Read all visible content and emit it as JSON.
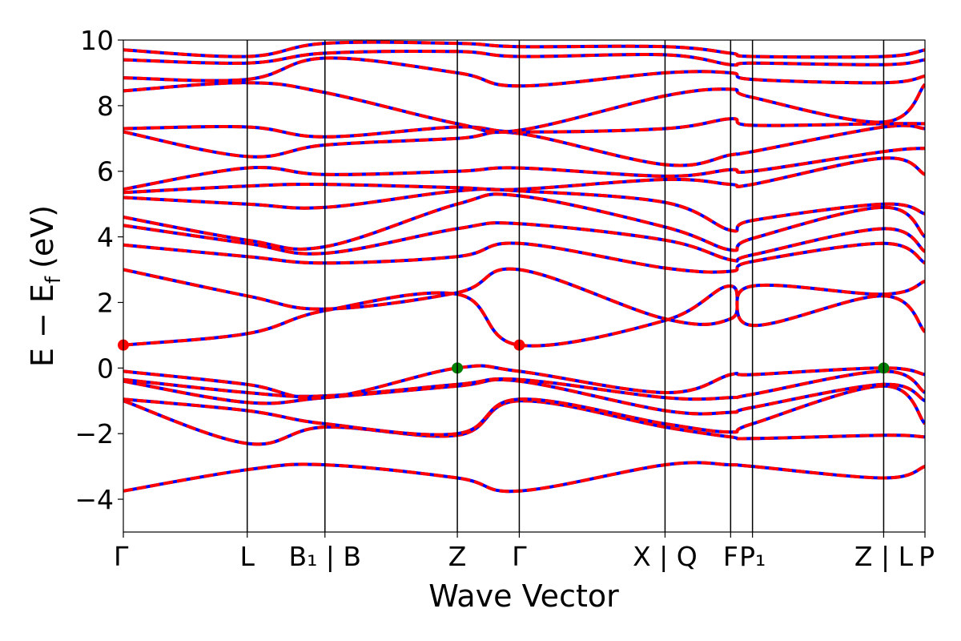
{
  "chart_data": {
    "type": "line",
    "xlabel": "Wave Vector",
    "ylabel": "E − E_f (eV)",
    "ylabel_parts": {
      "main": "E − E",
      "sub": "f",
      "unit": "(eV)"
    },
    "ylim": [
      -5,
      10
    ],
    "yticks": [
      -4,
      -2,
      0,
      2,
      4,
      6,
      8,
      10
    ],
    "xlim": [
      0,
      6.6
    ],
    "grid": false,
    "legend": "none",
    "kpoints": [
      {
        "x": 0.0,
        "label": "Γ"
      },
      {
        "x": 1.02,
        "label": "L"
      },
      {
        "x": 1.66,
        "label": "B₁ | B"
      },
      {
        "x": 2.75,
        "label": "Z"
      },
      {
        "x": 3.26,
        "label": "Γ"
      },
      {
        "x": 4.46,
        "label": "X | Q"
      },
      {
        "x": 5.0,
        "label": "F"
      },
      {
        "x": 5.18,
        "label": "P₁"
      },
      {
        "x": 6.26,
        "label": "Z | L"
      },
      {
        "x": 6.6,
        "label": "P"
      }
    ],
    "line_colors": {
      "primary": "#ff0000",
      "secondary": "#0000ff"
    },
    "marker_colors": {
      "cbm": "#ff0000",
      "vbm": "#008000"
    },
    "markers": [
      {
        "x": 0.0,
        "y": 0.7,
        "type": "cbm"
      },
      {
        "x": 3.26,
        "y": 0.7,
        "type": "cbm"
      },
      {
        "x": 2.75,
        "y": 0.0,
        "type": "vbm"
      },
      {
        "x": 6.26,
        "y": 0.0,
        "type": "vbm"
      }
    ],
    "bands": [
      {
        "x": [
          0,
          1.02,
          1.66,
          2.75,
          3.26,
          4.46,
          5.0,
          5.18,
          6.26,
          6.6
        ],
        "y": [
          -3.75,
          -3.1,
          -2.95,
          -3.35,
          -3.75,
          -2.95,
          -2.95,
          -3.0,
          -3.35,
          -3.0
        ]
      },
      {
        "x": [
          0,
          1.02,
          1.66,
          2.75,
          3.26,
          4.46,
          5.0,
          5.18,
          6.26,
          6.6
        ],
        "y": [
          -1.0,
          -2.3,
          -1.8,
          -2.05,
          -1.0,
          -1.8,
          -2.1,
          -2.15,
          -2.05,
          -2.1
        ]
      },
      {
        "x": [
          0,
          1.02,
          1.66,
          2.75,
          3.26,
          4.46,
          5.0,
          5.18,
          6.26,
          6.6
        ],
        "y": [
          -0.95,
          -1.3,
          -1.7,
          -2.0,
          -0.95,
          -1.7,
          -1.95,
          -1.7,
          -0.55,
          -1.7
        ]
      },
      {
        "x": [
          0,
          1.02,
          1.66,
          2.75,
          3.26,
          4.46,
          5.0,
          5.18,
          6.26,
          6.6
        ],
        "y": [
          -0.4,
          -1.05,
          -0.9,
          -0.55,
          -0.4,
          -1.3,
          -1.35,
          -1.2,
          -0.5,
          -1.0
        ]
      },
      {
        "x": [
          0,
          1.02,
          1.66,
          2.75,
          3.26,
          4.46,
          5.0,
          5.18,
          6.26,
          6.6
        ],
        "y": [
          -0.35,
          -0.75,
          -0.85,
          -0.5,
          -0.35,
          -0.9,
          -0.9,
          -0.8,
          -0.1,
          -0.75
        ]
      },
      {
        "x": [
          0,
          1.02,
          1.66,
          2.75,
          3.26,
          4.46,
          5.0,
          5.18,
          6.26,
          6.6
        ],
        "y": [
          -0.1,
          -0.5,
          -0.9,
          0.0,
          -0.1,
          -0.75,
          -0.2,
          -0.2,
          0.0,
          -0.2
        ]
      },
      {
        "x": [
          0,
          1.02,
          1.66,
          2.75,
          3.26,
          4.46,
          5.0,
          5.18,
          6.26,
          6.6
        ],
        "y": [
          0.7,
          1.05,
          1.75,
          2.25,
          0.7,
          1.45,
          2.5,
          1.3,
          2.2,
          1.1
        ]
      },
      {
        "x": [
          0,
          1.02,
          1.66,
          2.75,
          3.26,
          4.46,
          5.0,
          5.18,
          6.26,
          6.6
        ],
        "y": [
          3.0,
          2.2,
          1.8,
          2.3,
          3.0,
          1.5,
          1.5,
          2.5,
          2.25,
          2.65
        ]
      },
      {
        "x": [
          0,
          1.02,
          1.66,
          2.75,
          3.26,
          4.46,
          5.0,
          5.18,
          6.26,
          6.6
        ],
        "y": [
          3.75,
          3.4,
          3.2,
          3.4,
          3.8,
          3.05,
          2.95,
          3.25,
          3.8,
          3.2
        ]
      },
      {
        "x": [
          0,
          1.02,
          1.66,
          2.75,
          3.26,
          4.46,
          5.0,
          5.18,
          6.26,
          6.6
        ],
        "y": [
          4.35,
          3.8,
          3.5,
          4.25,
          4.4,
          3.9,
          3.3,
          3.45,
          4.25,
          3.55
        ]
      },
      {
        "x": [
          0,
          1.02,
          1.66,
          2.75,
          3.26,
          4.46,
          5.0,
          5.18,
          6.26,
          6.6
        ],
        "y": [
          4.6,
          3.9,
          3.7,
          5.0,
          5.25,
          4.3,
          3.6,
          3.95,
          4.9,
          4.0
        ]
      },
      {
        "x": [
          0,
          1.02,
          1.66,
          2.75,
          3.26,
          4.46,
          5.0,
          5.18,
          6.26,
          6.6
        ],
        "y": [
          5.2,
          5.0,
          4.9,
          5.4,
          5.4,
          5.05,
          4.2,
          4.5,
          5.0,
          4.7
        ]
      },
      {
        "x": [
          0,
          1.02,
          1.66,
          2.75,
          3.26,
          4.46,
          5.0,
          5.18,
          6.26,
          6.6
        ],
        "y": [
          5.35,
          5.55,
          5.6,
          5.5,
          5.45,
          5.75,
          5.6,
          5.6,
          6.4,
          5.9
        ]
      },
      {
        "x": [
          0,
          1.02,
          1.66,
          2.75,
          3.26,
          4.46,
          5.0,
          5.18,
          6.26,
          6.6
        ],
        "y": [
          5.45,
          6.1,
          5.9,
          6.0,
          6.1,
          5.85,
          6.05,
          6.0,
          6.6,
          6.7
        ]
      },
      {
        "x": [
          0,
          1.02,
          1.66,
          2.75,
          3.26,
          4.46,
          5.0,
          5.18,
          6.26,
          6.6
        ],
        "y": [
          7.2,
          6.45,
          6.8,
          7.0,
          7.15,
          6.2,
          6.5,
          6.6,
          7.35,
          7.3
        ]
      },
      {
        "x": [
          0,
          1.02,
          1.66,
          2.75,
          3.26,
          4.46,
          5.0,
          5.18,
          6.26,
          6.6
        ],
        "y": [
          7.3,
          7.35,
          7.05,
          7.35,
          7.2,
          7.3,
          7.6,
          7.4,
          7.45,
          7.45
        ]
      },
      {
        "x": [
          0,
          1.02,
          1.66,
          2.75,
          3.26,
          4.46,
          5.0,
          5.18,
          6.26,
          6.6
        ],
        "y": [
          8.45,
          8.7,
          8.4,
          7.45,
          7.25,
          8.3,
          8.5,
          8.25,
          7.5,
          8.65
        ]
      },
      {
        "x": [
          0,
          1.02,
          1.66,
          2.75,
          3.26,
          4.46,
          5.0,
          5.18,
          6.26,
          6.6
        ],
        "y": [
          8.85,
          8.8,
          9.45,
          9.0,
          8.6,
          9.0,
          9.0,
          8.8,
          8.7,
          8.9
        ]
      },
      {
        "x": [
          0,
          1.02,
          1.66,
          2.75,
          3.26,
          4.46,
          5.0,
          5.18,
          6.26,
          6.6
        ],
        "y": [
          9.4,
          9.3,
          9.6,
          9.65,
          9.5,
          9.55,
          9.25,
          9.3,
          9.25,
          9.4
        ]
      },
      {
        "x": [
          0,
          1.02,
          1.66,
          2.75,
          3.26,
          4.46,
          5.0,
          5.18,
          6.26,
          6.6
        ],
        "y": [
          9.7,
          9.5,
          9.9,
          9.9,
          9.8,
          9.8,
          9.6,
          9.5,
          9.5,
          9.7
        ]
      }
    ]
  }
}
